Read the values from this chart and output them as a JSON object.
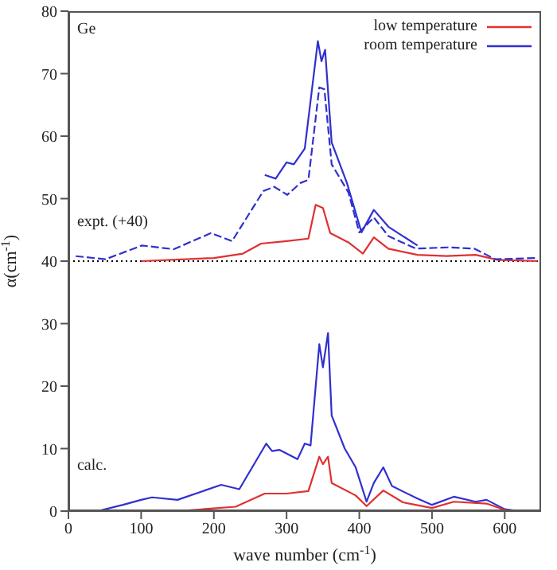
{
  "chart_data": {
    "type": "line",
    "xlabel": "wave number (cm$^{-1}$)",
    "ylabel": "α(cm$^{-1}$)",
    "xlim": [
      0,
      650
    ],
    "ylim": [
      0,
      80
    ],
    "xticks": [
      0,
      100,
      200,
      300,
      400,
      500,
      600
    ],
    "yticks": [
      0,
      10,
      20,
      30,
      40,
      50,
      60,
      70,
      80
    ],
    "legend": "top right",
    "marker": "none",
    "annotations": [
      "Ge",
      "expt. (+40)",
      "calc."
    ],
    "ref_lines": [
      {
        "axis": "y",
        "value": 40,
        "color": "#000000",
        "line_style": "dotted"
      }
    ],
    "series": [
      {
        "name": "low temperature",
        "color": "#e03030",
        "line_style": "solid",
        "x": [
          100,
          200,
          240,
          265,
          300,
          330,
          340,
          350,
          360,
          385,
          405,
          420,
          440,
          480,
          520,
          560,
          590,
          645
        ],
        "values": [
          40,
          40.5,
          41.2,
          42.8,
          43.2,
          43.6,
          49,
          48.5,
          44.5,
          43,
          41.2,
          43.8,
          42,
          41,
          40.8,
          41,
          40.2,
          40
        ]
      },
      {
        "name": "room temperature",
        "color": "#3030d0",
        "line_style": "solid",
        "x": [
          270,
          285,
          300,
          310,
          325,
          343,
          348,
          353,
          362,
          383,
          403,
          420,
          440,
          480
        ],
        "values": [
          53.8,
          53.2,
          55.8,
          55.5,
          58,
          75.2,
          72,
          73.8,
          59,
          52.5,
          44.6,
          48.2,
          45.5,
          42.5
        ]
      },
      {
        "color": "#3030d0",
        "line_style": "dashed",
        "x": [
          10,
          51,
          101,
          145,
          196,
          225,
          268,
          283,
          301,
          319,
          330,
          345,
          352,
          362,
          385,
          400,
          420,
          440,
          478,
          522,
          558,
          587,
          645
        ],
        "values": [
          40.8,
          40.3,
          42.5,
          41.9,
          44.5,
          43.2,
          51.2,
          51.9,
          50.6,
          52.5,
          53,
          67.8,
          67.5,
          55.5,
          51,
          44.6,
          47,
          44,
          42,
          42.2,
          42,
          40.3,
          40.5
        ]
      },
      {
        "color": "#3030d0",
        "line_style": "solid",
        "x": [
          40,
          75,
          100,
          115,
          150,
          210,
          235,
          272,
          280,
          290,
          315,
          325,
          333,
          345,
          350,
          357,
          362,
          380,
          395,
          410,
          420,
          433,
          445,
          480,
          500,
          530,
          560,
          575,
          600,
          620
        ],
        "values": [
          0,
          1,
          1.8,
          2.2,
          1.8,
          4.2,
          3.5,
          10.8,
          9.6,
          9.8,
          8.3,
          10.8,
          10.5,
          26.7,
          23,
          28.5,
          15.3,
          10,
          7,
          1.5,
          4.5,
          7,
          4,
          2,
          1,
          2.3,
          1.5,
          1.8,
          0.3,
          0
        ]
      },
      {
        "color": "#e03030",
        "line_style": "solid",
        "x": [
          150,
          230,
          270,
          300,
          330,
          345,
          350,
          357,
          362,
          395,
          410,
          433,
          460,
          500,
          530,
          575,
          600,
          620
        ],
        "values": [
          0,
          0.7,
          2.8,
          2.8,
          3.2,
          8.7,
          7.5,
          8.7,
          4.5,
          2.5,
          0.8,
          3.3,
          1.4,
          0.5,
          1.5,
          1.2,
          0.2,
          0
        ]
      }
    ]
  }
}
